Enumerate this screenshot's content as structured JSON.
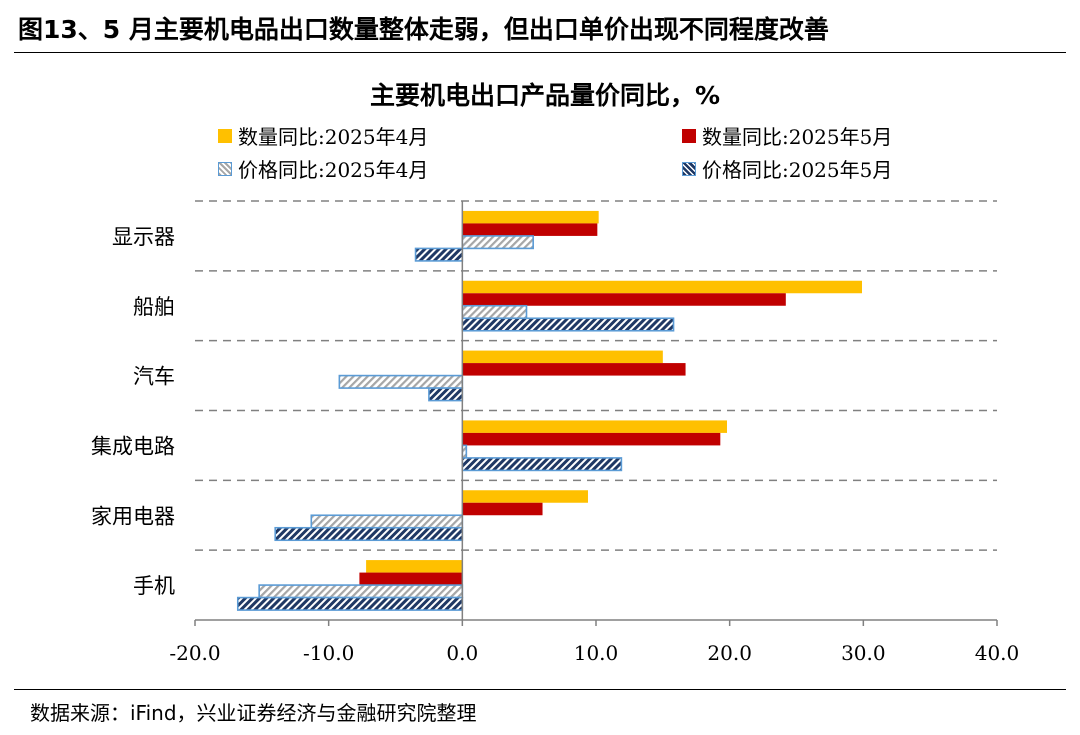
{
  "figure": {
    "title": "图13、5 月主要机电品出口数量整体走弱，但出口单价出现不同程度改善",
    "source": "数据来源：iFind，兴业证券经济与金融研究院整理"
  },
  "colors": {
    "qty_apr": "#FFC000",
    "qty_may": "#C00000",
    "price_apr": "#A6A6A6",
    "price_apr_border": "#5B9BD5",
    "price_may": "#1F3864",
    "price_may_border": "#5B9BD5",
    "grid": "#808080"
  },
  "legend": [
    {
      "label": "数量同比:2025年4月",
      "pattern": "solid",
      "color": "#FFC000"
    },
    {
      "label": "数量同比:2025年5月",
      "pattern": "solid",
      "color": "#C00000"
    },
    {
      "label": "价格同比:2025年4月",
      "pattern": "hatch-light",
      "color": "#A6A6A6"
    },
    {
      "label": "价格同比:2025年5月",
      "pattern": "hatch-dark",
      "color": "#1F3864"
    }
  ],
  "chart_data": {
    "type": "bar",
    "orientation": "horizontal",
    "title": "主要机电出口产品量价同比，%",
    "categories": [
      "显示器",
      "船舶",
      "汽车",
      "集成电路",
      "家用电器",
      "手机"
    ],
    "series": [
      {
        "name": "数量同比:2025年4月",
        "values": [
          10.2,
          29.9,
          15.0,
          19.8,
          9.4,
          -7.2
        ]
      },
      {
        "name": "数量同比:2025年5月",
        "values": [
          10.1,
          24.2,
          16.7,
          19.3,
          6.0,
          -7.7
        ]
      },
      {
        "name": "价格同比:2025年4月",
        "values": [
          5.3,
          4.8,
          -9.2,
          0.3,
          -11.3,
          -15.2
        ]
      },
      {
        "name": "价格同比:2025年5月",
        "values": [
          -3.5,
          15.8,
          -2.5,
          11.9,
          -14.0,
          -16.8
        ]
      }
    ],
    "xlim": [
      -20,
      40
    ],
    "xticks": [
      "-20.0",
      "-10.0",
      "0.0",
      "10.0",
      "20.0",
      "30.0",
      "40.0"
    ],
    "category_separators": "dashed",
    "legend_position": "top"
  }
}
